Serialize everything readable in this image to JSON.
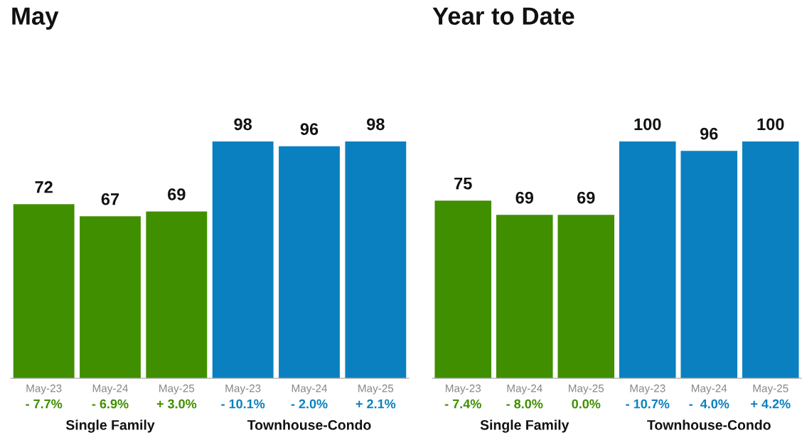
{
  "chart_data": [
    {
      "type": "bar",
      "title": "May",
      "categories": [
        "May-23",
        "May-24",
        "May-25",
        "May-23",
        "May-24",
        "May-25"
      ],
      "values": [
        72,
        67,
        69,
        98,
        96,
        98
      ],
      "colors": [
        "#3f8f00",
        "#3f8f00",
        "#3f8f00",
        "#0a80c0",
        "#0a80c0",
        "#0a80c0"
      ],
      "data_labels": true,
      "annotations": [
        "- 7.7%",
        "- 6.9%",
        "+ 3.0%",
        "- 10.1%",
        "- 2.0%",
        "+ 2.1%",
        "Single Family",
        "Townhouse-Condo"
      ]
    },
    {
      "type": "bar",
      "title": "Year to Date",
      "categories": [
        "May-23",
        "May-24",
        "May-25",
        "May-23",
        "May-24",
        "May-25"
      ],
      "values": [
        75,
        69,
        69,
        100,
        96,
        100
      ],
      "colors": [
        "#3f8f00",
        "#3f8f00",
        "#3f8f00",
        "#0a80c0",
        "#0a80c0",
        "#0a80c0"
      ],
      "data_labels": true,
      "annotations": [
        "- 7.4%",
        "- 8.0%",
        "0.0%",
        "- 10.7%",
        "-  4.0%",
        "+ 4.2%",
        "Single Family",
        "Townhouse-Condo"
      ]
    }
  ]
}
